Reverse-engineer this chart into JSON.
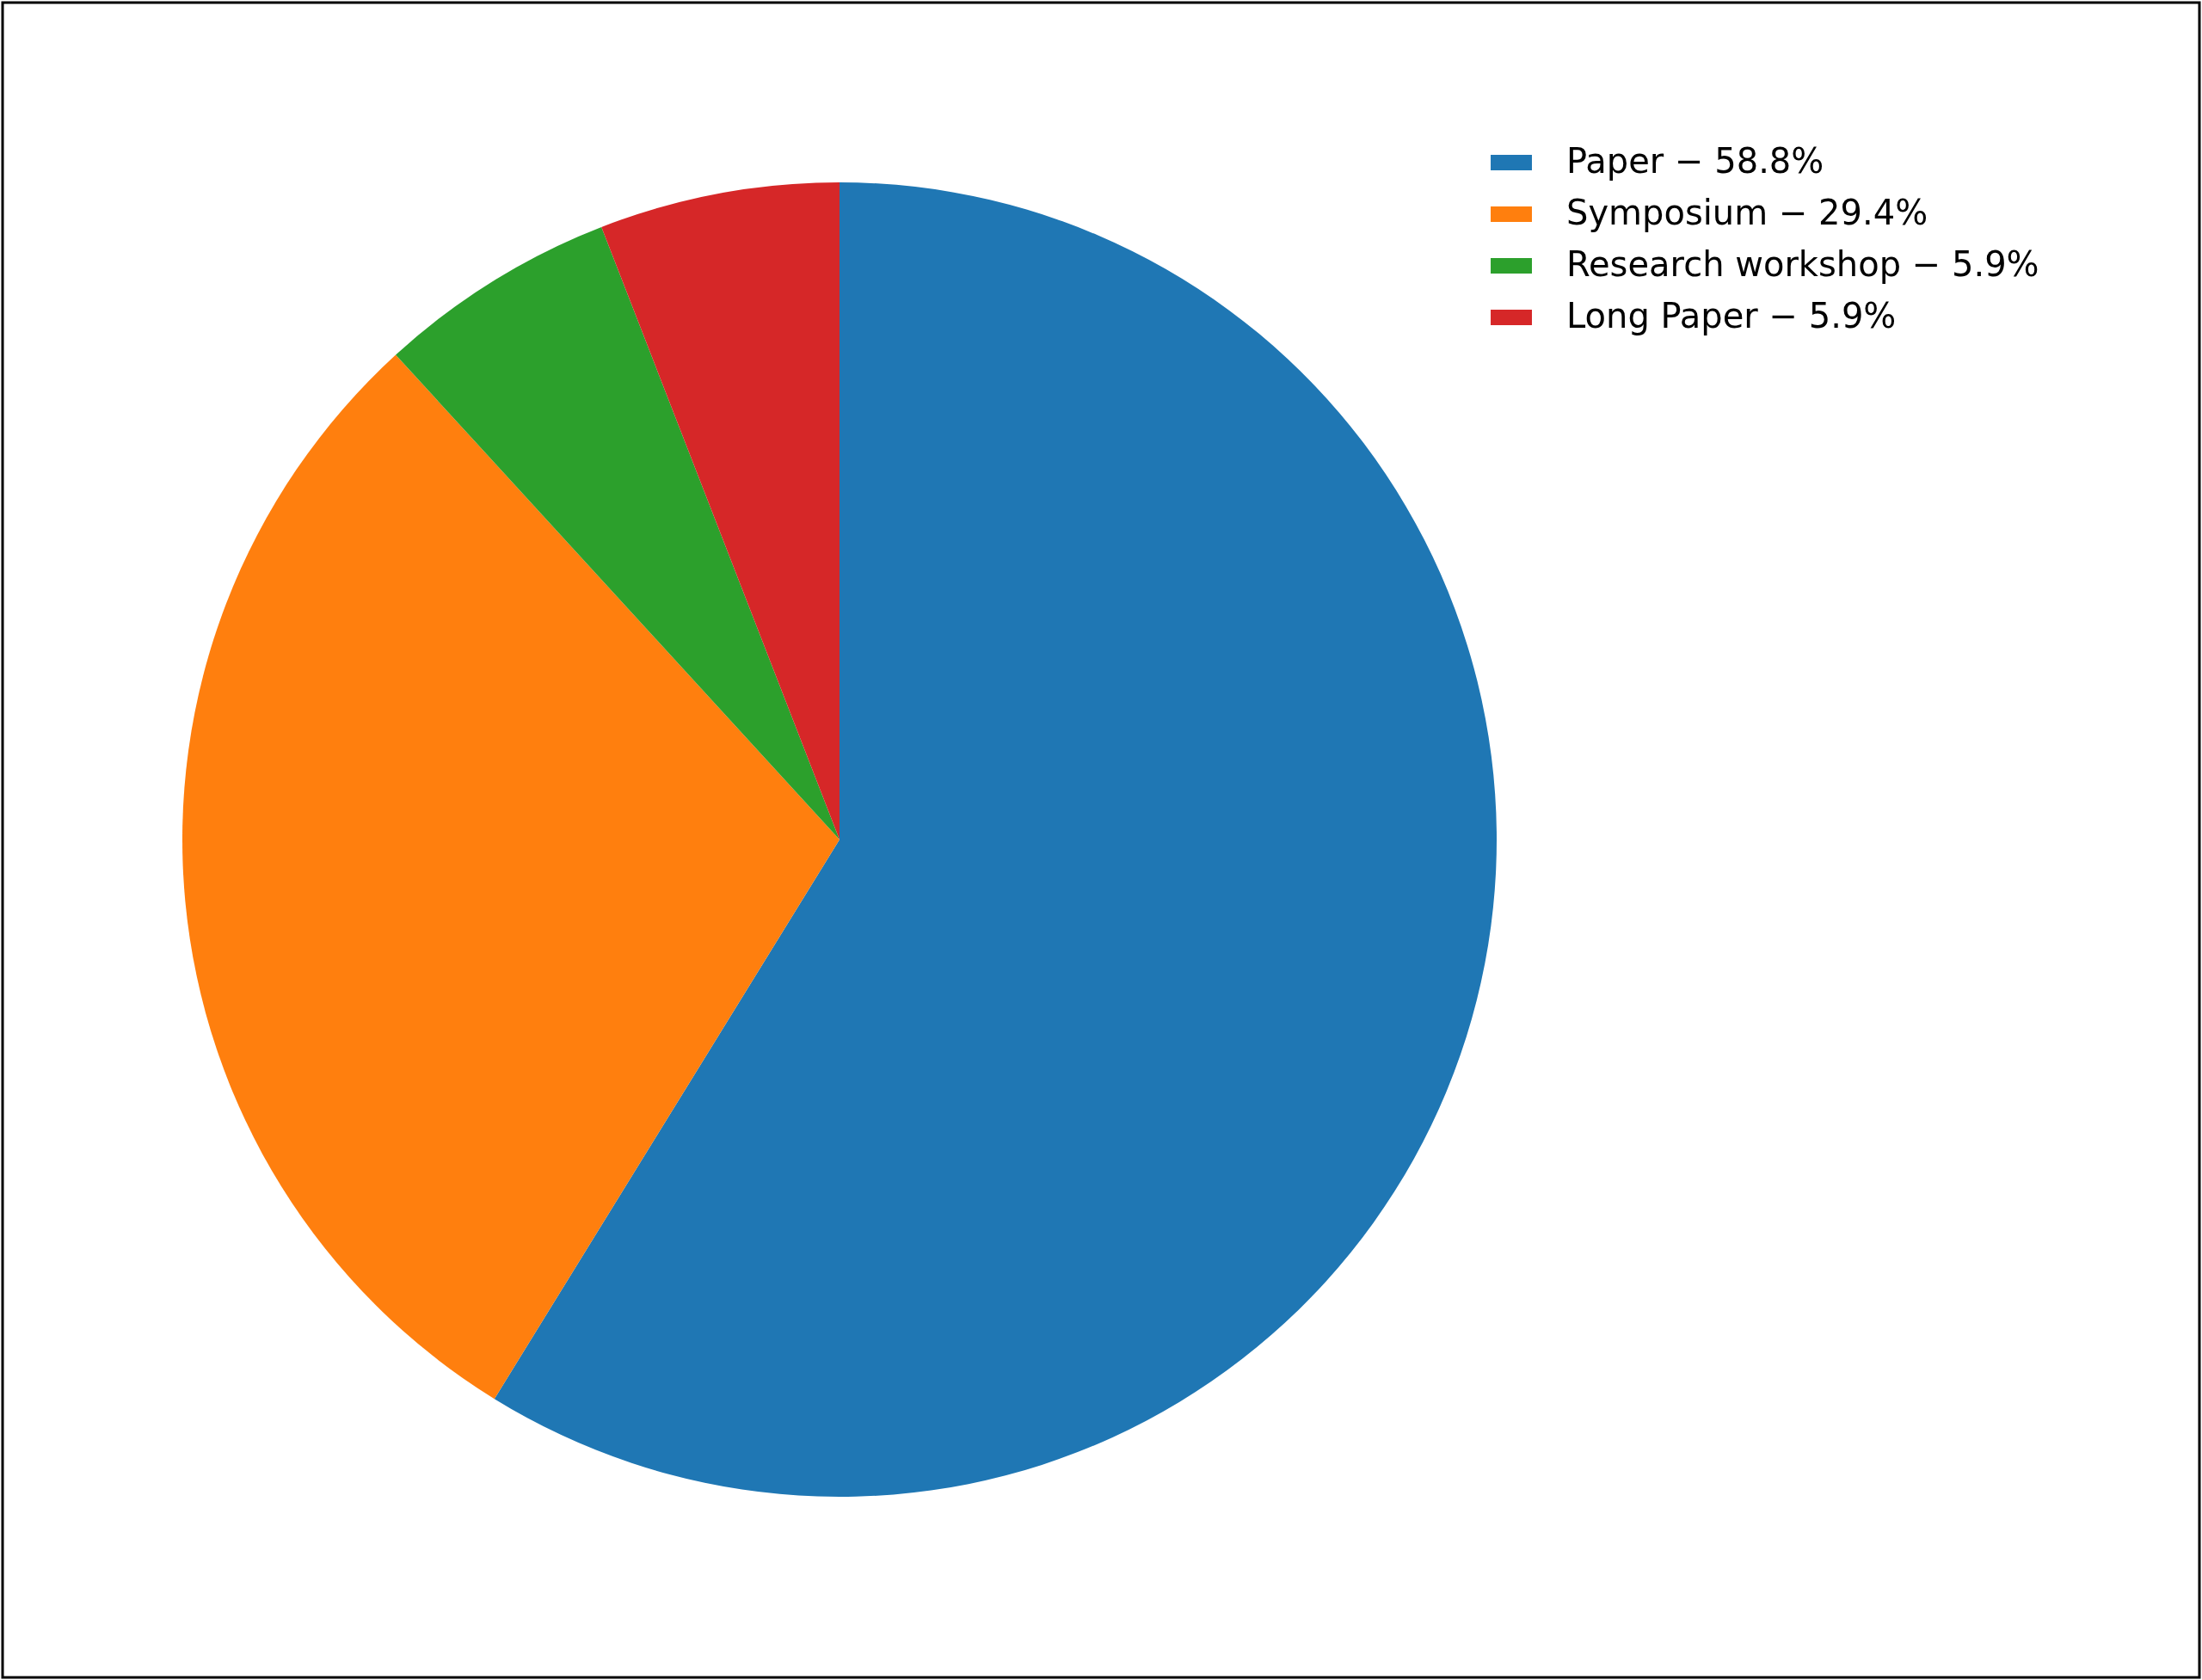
{
  "chart_data": {
    "type": "pie",
    "categories": [
      "Paper − 58.8%",
      "Symposium − 29.4%",
      "Research workshop − 5.9%",
      "Long Paper − 5.9%"
    ],
    "values": [
      58.8,
      29.4,
      5.9,
      5.9
    ],
    "colors": [
      "#1f77b4",
      "#ff7f0e",
      "#2ca02c",
      "#d62728"
    ],
    "legend": "top right"
  }
}
